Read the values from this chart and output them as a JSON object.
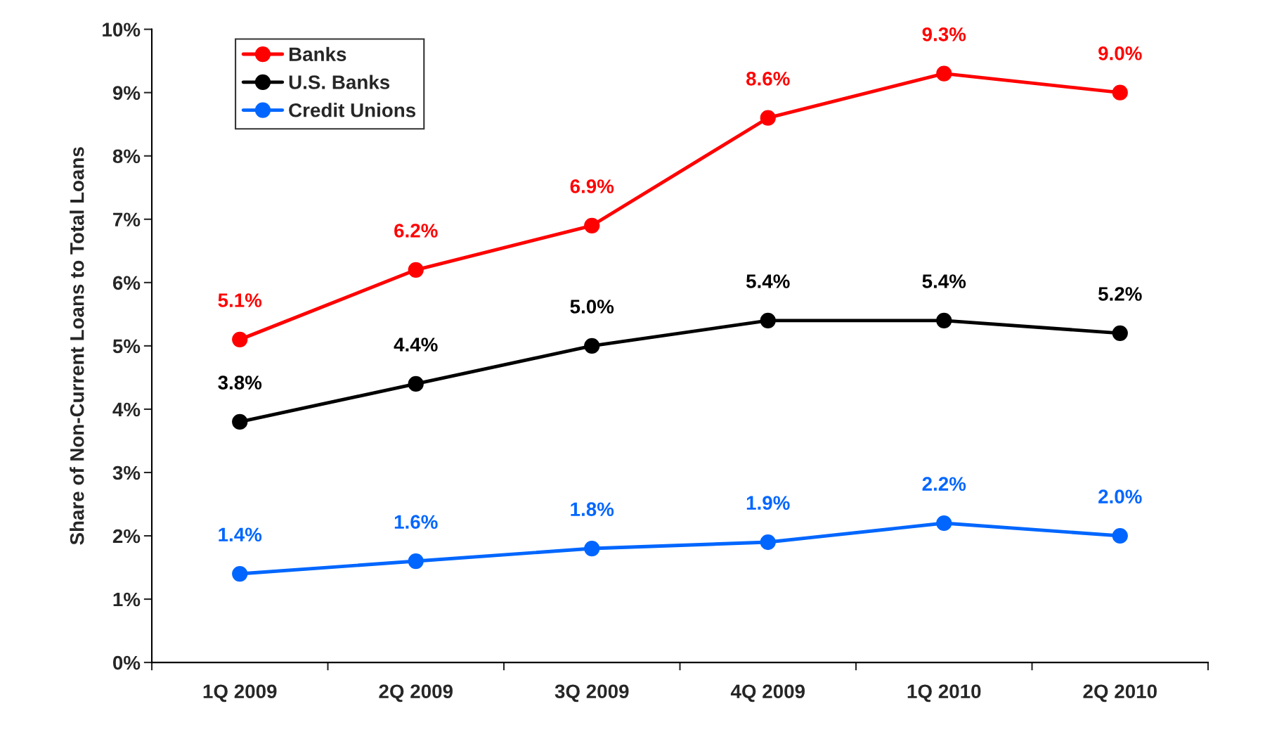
{
  "chart_data": {
    "type": "line",
    "ylabel": "Share of Non-Current Loans to Total Loans",
    "categories": [
      "1Q 2009",
      "2Q 2009",
      "3Q 2009",
      "4Q 2009",
      "1Q 2010",
      "2Q 2010"
    ],
    "series": [
      {
        "name": "Banks",
        "color": "#ff0000",
        "values": [
          5.1,
          6.2,
          6.9,
          8.6,
          9.3,
          9.0
        ],
        "value_labels": [
          "5.1%",
          "6.2%",
          "6.9%",
          "8.6%",
          "9.3%",
          "9.0%"
        ]
      },
      {
        "name": "U.S. Banks",
        "color": "#000000",
        "values": [
          3.8,
          4.4,
          5.0,
          5.4,
          5.4,
          5.2
        ],
        "value_labels": [
          "3.8%",
          "4.4%",
          "5.0%",
          "5.4%",
          "5.4%",
          "5.2%"
        ]
      },
      {
        "name": "Credit Unions",
        "color": "#0066ff",
        "values": [
          1.4,
          1.6,
          1.8,
          1.9,
          2.2,
          2.0
        ],
        "value_labels": [
          "1.4%",
          "1.6%",
          "1.8%",
          "1.9%",
          "2.2%",
          "2.0%"
        ]
      }
    ],
    "ylim": [
      0,
      10
    ],
    "yticks": [
      {
        "value": 0,
        "label": "0%"
      },
      {
        "value": 1,
        "label": "1%"
      },
      {
        "value": 2,
        "label": "2%"
      },
      {
        "value": 3,
        "label": "3%"
      },
      {
        "value": 4,
        "label": "4%"
      },
      {
        "value": 5,
        "label": "5%"
      },
      {
        "value": 6,
        "label": "6%"
      },
      {
        "value": 7,
        "label": "7%"
      },
      {
        "value": 8,
        "label": "8%"
      },
      {
        "value": 9,
        "label": "9%"
      },
      {
        "value": 10,
        "label": "10%"
      }
    ],
    "grid": false,
    "legend": "top left",
    "marker": "circle",
    "line_style": "solid"
  }
}
